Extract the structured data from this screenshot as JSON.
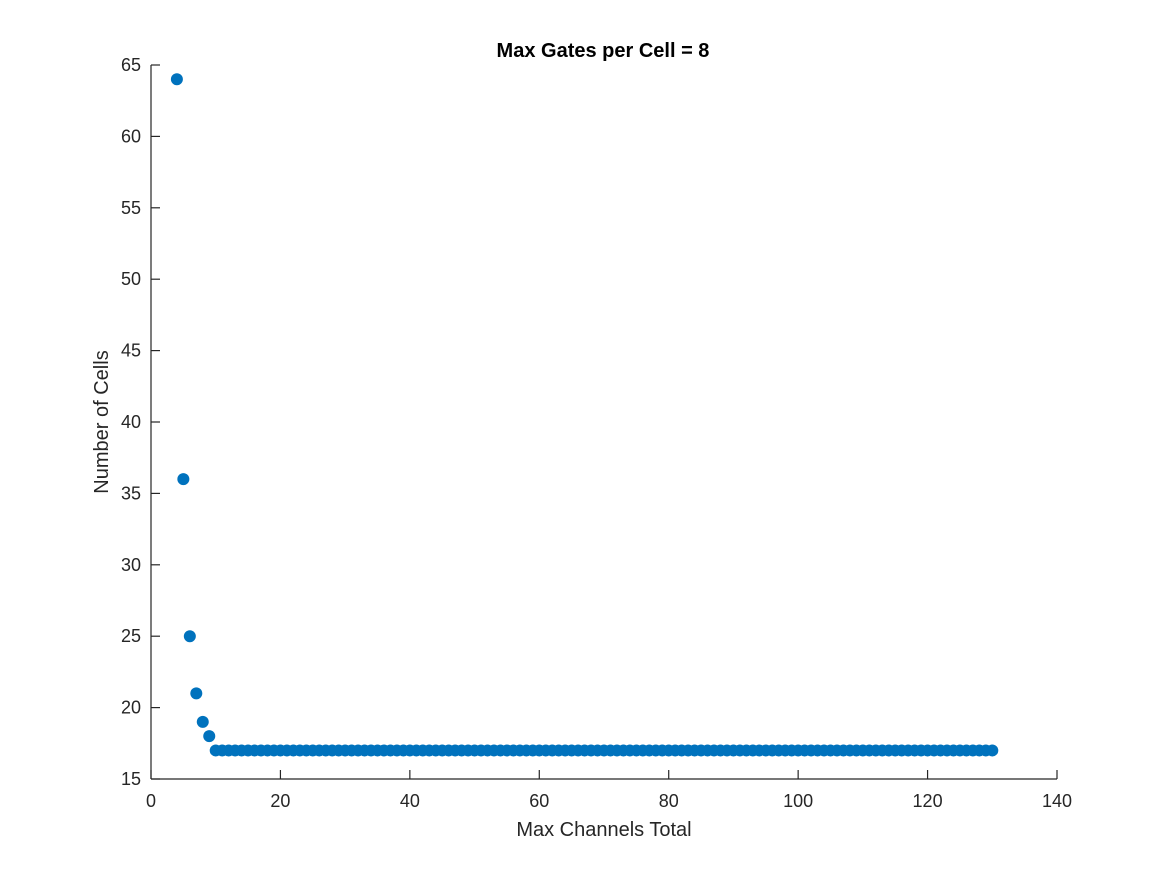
{
  "chart_data": {
    "type": "scatter",
    "title": "Max Gates per Cell = 8",
    "xlabel": "Max Channels Total",
    "ylabel": "Number of Cells",
    "xlim": [
      0,
      140
    ],
    "ylim": [
      15,
      65
    ],
    "xticks": [
      "0",
      "20",
      "40",
      "60",
      "80",
      "100",
      "120",
      "140"
    ],
    "yticks": [
      "15",
      "20",
      "25",
      "30",
      "35",
      "40",
      "45",
      "50",
      "55",
      "60",
      "65"
    ],
    "grid": false,
    "marker_color": "#0072BD",
    "series": [
      {
        "points": [
          [
            4,
            64
          ],
          [
            5,
            36
          ],
          [
            6,
            25
          ],
          [
            7,
            21
          ],
          [
            8,
            19
          ],
          [
            9,
            18
          ],
          [
            10,
            17
          ],
          [
            11,
            17
          ],
          [
            12,
            17
          ],
          [
            13,
            17
          ],
          [
            14,
            17
          ],
          [
            15,
            17
          ],
          [
            16,
            17
          ],
          [
            17,
            17
          ],
          [
            18,
            17
          ],
          [
            19,
            17
          ],
          [
            20,
            17
          ],
          [
            21,
            17
          ],
          [
            22,
            17
          ],
          [
            23,
            17
          ],
          [
            24,
            17
          ],
          [
            25,
            17
          ],
          [
            26,
            17
          ],
          [
            27,
            17
          ],
          [
            28,
            17
          ],
          [
            29,
            17
          ],
          [
            30,
            17
          ],
          [
            31,
            17
          ],
          [
            32,
            17
          ],
          [
            33,
            17
          ],
          [
            34,
            17
          ],
          [
            35,
            17
          ],
          [
            36,
            17
          ],
          [
            37,
            17
          ],
          [
            38,
            17
          ],
          [
            39,
            17
          ],
          [
            40,
            17
          ],
          [
            41,
            17
          ],
          [
            42,
            17
          ],
          [
            43,
            17
          ],
          [
            44,
            17
          ],
          [
            45,
            17
          ],
          [
            46,
            17
          ],
          [
            47,
            17
          ],
          [
            48,
            17
          ],
          [
            49,
            17
          ],
          [
            50,
            17
          ],
          [
            51,
            17
          ],
          [
            52,
            17
          ],
          [
            53,
            17
          ],
          [
            54,
            17
          ],
          [
            55,
            17
          ],
          [
            56,
            17
          ],
          [
            57,
            17
          ],
          [
            58,
            17
          ],
          [
            59,
            17
          ],
          [
            60,
            17
          ],
          [
            61,
            17
          ],
          [
            62,
            17
          ],
          [
            63,
            17
          ],
          [
            64,
            17
          ],
          [
            65,
            17
          ],
          [
            66,
            17
          ],
          [
            67,
            17
          ],
          [
            68,
            17
          ],
          [
            69,
            17
          ],
          [
            70,
            17
          ],
          [
            71,
            17
          ],
          [
            72,
            17
          ],
          [
            73,
            17
          ],
          [
            74,
            17
          ],
          [
            75,
            17
          ],
          [
            76,
            17
          ],
          [
            77,
            17
          ],
          [
            78,
            17
          ],
          [
            79,
            17
          ],
          [
            80,
            17
          ],
          [
            81,
            17
          ],
          [
            82,
            17
          ],
          [
            83,
            17
          ],
          [
            84,
            17
          ],
          [
            85,
            17
          ],
          [
            86,
            17
          ],
          [
            87,
            17
          ],
          [
            88,
            17
          ],
          [
            89,
            17
          ],
          [
            90,
            17
          ],
          [
            91,
            17
          ],
          [
            92,
            17
          ],
          [
            93,
            17
          ],
          [
            94,
            17
          ],
          [
            95,
            17
          ],
          [
            96,
            17
          ],
          [
            97,
            17
          ],
          [
            98,
            17
          ],
          [
            99,
            17
          ],
          [
            100,
            17
          ],
          [
            101,
            17
          ],
          [
            102,
            17
          ],
          [
            103,
            17
          ],
          [
            104,
            17
          ],
          [
            105,
            17
          ],
          [
            106,
            17
          ],
          [
            107,
            17
          ],
          [
            108,
            17
          ],
          [
            109,
            17
          ],
          [
            110,
            17
          ],
          [
            111,
            17
          ],
          [
            112,
            17
          ],
          [
            113,
            17
          ],
          [
            114,
            17
          ],
          [
            115,
            17
          ],
          [
            116,
            17
          ],
          [
            117,
            17
          ],
          [
            118,
            17
          ],
          [
            119,
            17
          ],
          [
            120,
            17
          ],
          [
            121,
            17
          ],
          [
            122,
            17
          ],
          [
            123,
            17
          ],
          [
            124,
            17
          ],
          [
            125,
            17
          ],
          [
            126,
            17
          ],
          [
            127,
            17
          ],
          [
            128,
            17
          ],
          [
            129,
            17
          ],
          [
            130,
            17
          ]
        ]
      }
    ]
  }
}
